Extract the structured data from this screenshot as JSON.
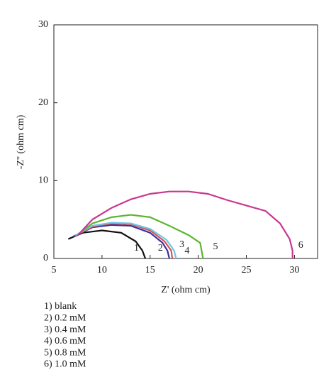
{
  "chart_data": {
    "type": "line",
    "xlabel": "Z' (ohm cm)",
    "ylabel": "-Z'' (ohm cm)",
    "xlim": [
      5,
      32.4
    ],
    "ylim": [
      0,
      30
    ],
    "xticks": [
      5,
      10,
      15,
      20,
      25,
      30
    ],
    "yticks": [
      0,
      10,
      20,
      30
    ],
    "series": [
      {
        "label": "1",
        "name": "1) blank",
        "color": "#111111",
        "x": [
          6.5,
          8,
          10,
          12,
          13.5,
          14.2,
          14.5
        ],
        "values": [
          2.5,
          3.3,
          3.6,
          3.3,
          2.2,
          1,
          0
        ]
      },
      {
        "label": "2",
        "name": "2) 0.2 mM",
        "color": "#3b2fa0",
        "x": [
          7,
          9,
          11,
          13,
          15,
          16.3,
          16.8,
          17
        ],
        "values": [
          2.8,
          4,
          4.3,
          4.2,
          3.3,
          2,
          1,
          0
        ]
      },
      {
        "label": "3",
        "name": "3) 0.4 mM",
        "color": "#d9534f",
        "x": [
          7.2,
          9,
          11,
          13,
          15,
          16.5,
          17.2,
          17.3
        ],
        "values": [
          2.9,
          4.1,
          4.5,
          4.4,
          3.6,
          2.2,
          1,
          0
        ]
      },
      {
        "label": "4",
        "name": "4) 0.6 mM",
        "color": "#6ec6e6",
        "x": [
          7.3,
          9,
          11,
          13,
          15,
          16.7,
          17.5,
          17.7
        ],
        "values": [
          3,
          4.2,
          4.6,
          4.5,
          3.8,
          2.4,
          1,
          0
        ]
      },
      {
        "label": "5",
        "name": "5) 0.8 mM",
        "color": "#5cb531",
        "x": [
          7.5,
          9,
          11,
          13,
          15,
          17,
          19,
          20.2,
          20.5
        ],
        "values": [
          3.1,
          4.5,
          5.3,
          5.6,
          5.3,
          4.2,
          3,
          2,
          0
        ]
      },
      {
        "label": "6",
        "name": "6) 1.0 mM",
        "color": "#c8378f",
        "x": [
          7.5,
          9,
          11,
          13,
          15,
          17,
          19,
          21,
          23,
          25,
          27,
          28.5,
          29.5,
          29.8,
          29.8
        ],
        "values": [
          3,
          5,
          6.5,
          7.6,
          8.3,
          8.6,
          8.6,
          8.3,
          7.5,
          6.8,
          6.1,
          4.5,
          2.5,
          1,
          0
        ]
      }
    ]
  }
}
